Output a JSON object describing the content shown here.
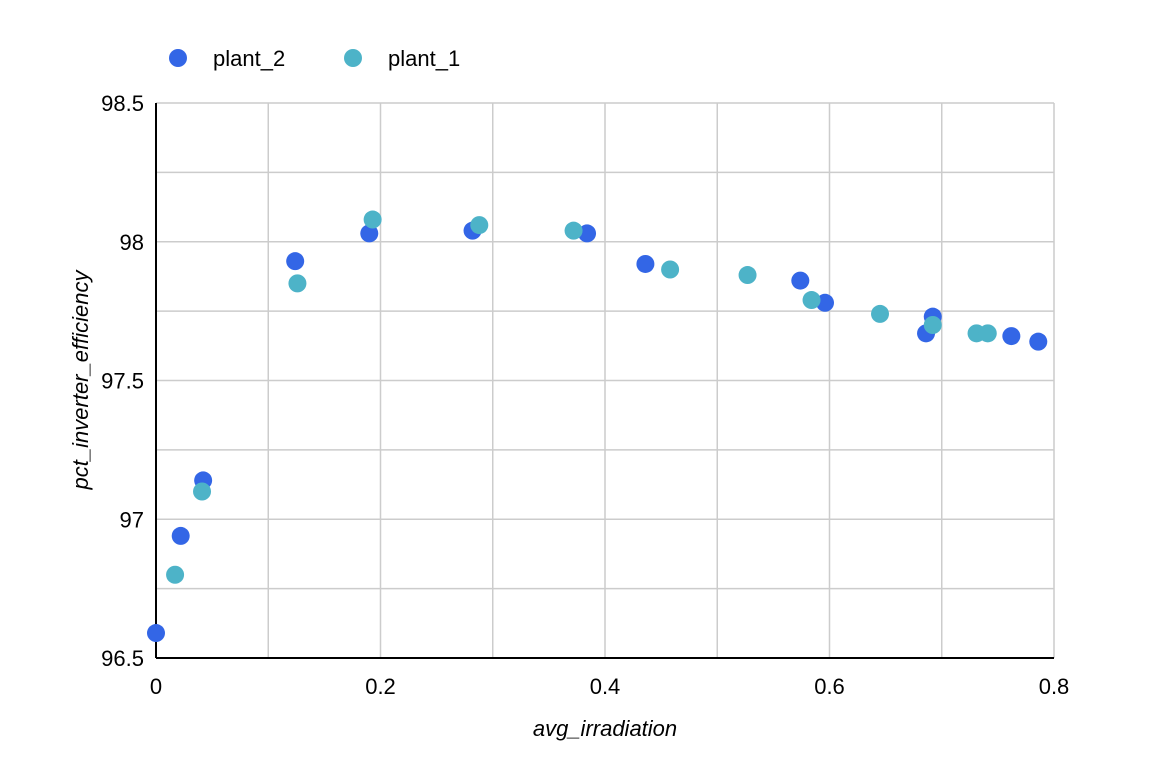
{
  "chart_data": {
    "type": "scatter",
    "xlabel": "avg_irradiation",
    "ylabel": "pct_inverter_efficiency",
    "xlim": [
      0,
      0.8
    ],
    "ylim": [
      96.5,
      98.5
    ],
    "x_ticks": [
      "0",
      "0.2",
      "0.4",
      "0.6",
      "0.8"
    ],
    "y_ticks": [
      "96.5",
      "97",
      "97.5",
      "98",
      "98.5"
    ],
    "grid": true,
    "legend_position": "top-left",
    "series": [
      {
        "name": "plant_2",
        "color": "#3366e6",
        "points": [
          [
            0.0,
            96.59
          ],
          [
            0.022,
            96.94
          ],
          [
            0.042,
            97.14
          ],
          [
            0.124,
            97.93
          ],
          [
            0.19,
            98.03
          ],
          [
            0.282,
            98.04
          ],
          [
            0.384,
            98.03
          ],
          [
            0.436,
            97.92
          ],
          [
            0.574,
            97.86
          ],
          [
            0.596,
            97.78
          ],
          [
            0.686,
            97.67
          ],
          [
            0.692,
            97.73
          ],
          [
            0.762,
            97.66
          ],
          [
            0.786,
            97.64
          ]
        ]
      },
      {
        "name": "plant_1",
        "color": "#4db3c8",
        "points": [
          [
            0.017,
            96.8
          ],
          [
            0.041,
            97.1
          ],
          [
            0.126,
            97.85
          ],
          [
            0.193,
            98.08
          ],
          [
            0.288,
            98.06
          ],
          [
            0.372,
            98.04
          ],
          [
            0.458,
            97.9
          ],
          [
            0.527,
            97.88
          ],
          [
            0.584,
            97.79
          ],
          [
            0.645,
            97.74
          ],
          [
            0.692,
            97.7
          ],
          [
            0.731,
            97.67
          ],
          [
            0.741,
            97.67
          ]
        ]
      }
    ]
  }
}
